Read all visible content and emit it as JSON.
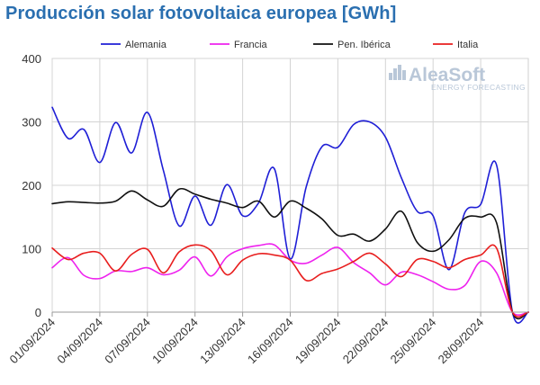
{
  "chart_data": {
    "type": "line",
    "title": "Producción solar fotovoltaica europea [GWh]",
    "xlabel": "",
    "ylabel": "",
    "ylim": [
      0,
      400
    ],
    "yticks": [
      0,
      100,
      200,
      300,
      400
    ],
    "xlim": [
      1,
      31
    ],
    "xticks": [
      {
        "day": 1,
        "label": "01/09/2024"
      },
      {
        "day": 4,
        "label": "04/09/2024"
      },
      {
        "day": 7,
        "label": "07/09/2024"
      },
      {
        "day": 10,
        "label": "10/09/2024"
      },
      {
        "day": 13,
        "label": "13/09/2024"
      },
      {
        "day": 16,
        "label": "16/09/2024"
      },
      {
        "day": 19,
        "label": "19/09/2024"
      },
      {
        "day": 22,
        "label": "22/09/2024"
      },
      {
        "day": 25,
        "label": "25/09/2024"
      },
      {
        "day": 28,
        "label": "28/09/2024"
      }
    ],
    "x": [
      1,
      2,
      3,
      4,
      5,
      6,
      7,
      8,
      9,
      10,
      11,
      12,
      13,
      14,
      15,
      16,
      17,
      18,
      19,
      20,
      21,
      22,
      23,
      24,
      25,
      26,
      27,
      28,
      29,
      30,
      31
    ],
    "grid": true,
    "legend_position": "top",
    "series": [
      {
        "name": "Alemania",
        "color": "#1f1fd6",
        "values": [
          323,
          274,
          288,
          236,
          299,
          251,
          315,
          224,
          136,
          183,
          137,
          201,
          152,
          172,
          226,
          84,
          197,
          261,
          260,
          296,
          300,
          276,
          212,
          159,
          152,
          67,
          157,
          170,
          232,
          0,
          0
        ]
      },
      {
        "name": "Francia",
        "color": "#ee22ee",
        "values": [
          70,
          86,
          58,
          53,
          65,
          64,
          70,
          59,
          66,
          87,
          57,
          87,
          100,
          105,
          106,
          82,
          77,
          90,
          102,
          78,
          62,
          43,
          63,
          59,
          48,
          36,
          42,
          80,
          62,
          0,
          0
        ]
      },
      {
        "name": "Pen. Ibérica",
        "color": "#111111",
        "values": [
          171,
          174,
          173,
          172,
          175,
          191,
          177,
          167,
          194,
          186,
          178,
          172,
          165,
          175,
          150,
          175,
          164,
          147,
          121,
          123,
          112,
          131,
          159,
          110,
          96,
          114,
          148,
          150,
          141,
          0,
          0
        ]
      },
      {
        "name": "Italia",
        "color": "#e81e1e",
        "values": [
          101,
          83,
          93,
          93,
          65,
          91,
          99,
          62,
          95,
          106,
          97,
          59,
          82,
          92,
          90,
          82,
          50,
          61,
          68,
          80,
          93,
          76,
          56,
          83,
          80,
          70,
          83,
          90,
          101,
          0,
          0
        ]
      }
    ]
  },
  "watermark": {
    "main": "AleaSoft",
    "sub": "ENERGY FORECASTING"
  }
}
